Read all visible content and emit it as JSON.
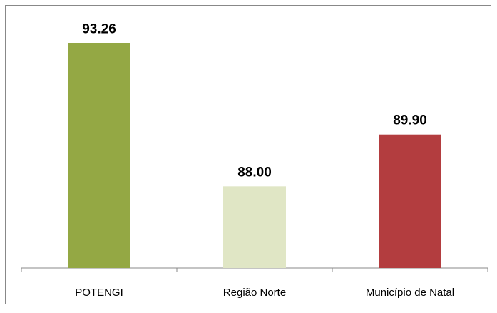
{
  "chart_data": {
    "type": "bar",
    "categories": [
      "POTENGI",
      "Região Norte",
      "Município de Natal"
    ],
    "values": [
      93.26,
      88.0,
      89.9
    ],
    "value_labels": [
      "93.26",
      "88.00",
      "89.90"
    ],
    "colors": [
      "#94a844",
      "#e0e6c5",
      "#b33d3f"
    ],
    "ylim": [
      85,
      94
    ]
  }
}
